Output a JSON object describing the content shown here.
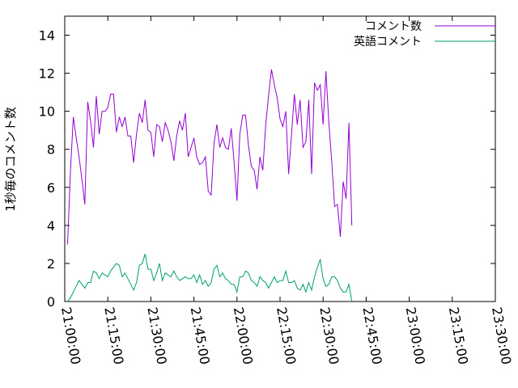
{
  "chart_data": {
    "type": "line",
    "title": "",
    "xlabel": "",
    "ylabel": "1秒毎のコメント数",
    "xlim": [
      "21:00:00",
      "23:30:00"
    ],
    "ylim": [
      0,
      15
    ],
    "xticks": [
      "21:00:00",
      "21:15:00",
      "21:30:00",
      "21:45:00",
      "22:00:00",
      "22:15:00",
      "22:30:00",
      "22:45:00",
      "23:00:00",
      "23:15:00",
      "23:30:00"
    ],
    "yticks": [
      0,
      2,
      4,
      6,
      8,
      10,
      12,
      14
    ],
    "grid": false,
    "legend_position": "top-right",
    "series": [
      {
        "name": "コメント数",
        "color": "#9400d3",
        "points": [
          [
            "21:01:00",
            3.0
          ],
          [
            "21:02:00",
            6.9
          ],
          [
            "21:03:00",
            9.7
          ],
          [
            "21:04:00",
            8.6
          ],
          [
            "21:05:00",
            7.6
          ],
          [
            "21:06:00",
            6.4
          ],
          [
            "21:07:00",
            5.1
          ],
          [
            "21:08:00",
            10.5
          ],
          [
            "21:09:00",
            9.5
          ],
          [
            "21:10:00",
            8.1
          ],
          [
            "21:11:00",
            10.8
          ],
          [
            "21:12:00",
            8.8
          ],
          [
            "21:13:00",
            10.0
          ],
          [
            "21:14:00",
            10.0
          ],
          [
            "21:15:00",
            10.2
          ],
          [
            "21:16:00",
            10.9
          ],
          [
            "21:17:00",
            10.9
          ],
          [
            "21:18:00",
            8.9
          ],
          [
            "21:19:00",
            9.7
          ],
          [
            "21:20:00",
            9.2
          ],
          [
            "21:21:00",
            9.7
          ],
          [
            "21:22:00",
            8.7
          ],
          [
            "21:23:00",
            8.7
          ],
          [
            "21:24:00",
            7.3
          ],
          [
            "21:25:00",
            8.8
          ],
          [
            "21:26:00",
            9.9
          ],
          [
            "21:27:00",
            9.4
          ],
          [
            "21:28:00",
            10.6
          ],
          [
            "21:29:00",
            9.0
          ],
          [
            "21:30:00",
            8.9
          ],
          [
            "21:31:00",
            7.6
          ],
          [
            "21:32:00",
            9.3
          ],
          [
            "21:33:00",
            9.2
          ],
          [
            "21:34:00",
            8.4
          ],
          [
            "21:35:00",
            9.4
          ],
          [
            "21:36:00",
            9.0
          ],
          [
            "21:37:00",
            8.4
          ],
          [
            "21:38:00",
            7.4
          ],
          [
            "21:39:00",
            8.7
          ],
          [
            "21:40:00",
            9.5
          ],
          [
            "21:41:00",
            9.0
          ],
          [
            "21:42:00",
            9.9
          ],
          [
            "21:43:00",
            7.6
          ],
          [
            "21:44:00",
            8.1
          ],
          [
            "21:45:00",
            8.6
          ],
          [
            "21:46:00",
            7.6
          ],
          [
            "21:47:00",
            7.2
          ],
          [
            "21:48:00",
            7.3
          ],
          [
            "21:49:00",
            7.6
          ],
          [
            "21:50:00",
            5.8
          ],
          [
            "21:51:00",
            5.6
          ],
          [
            "21:52:00",
            8.3
          ],
          [
            "21:53:00",
            9.3
          ],
          [
            "21:54:00",
            8.1
          ],
          [
            "21:55:00",
            8.6
          ],
          [
            "21:56:00",
            8.1
          ],
          [
            "21:57:00",
            8.0
          ],
          [
            "21:58:00",
            9.1
          ],
          [
            "21:59:00",
            7.3
          ],
          [
            "22:00:00",
            5.3
          ],
          [
            "22:01:00",
            8.8
          ],
          [
            "22:02:00",
            9.8
          ],
          [
            "22:03:00",
            9.8
          ],
          [
            "22:04:00",
            8.2
          ],
          [
            "22:05:00",
            7.1
          ],
          [
            "22:06:00",
            6.9
          ],
          [
            "22:07:00",
            5.9
          ],
          [
            "22:08:00",
            7.6
          ],
          [
            "22:09:00",
            6.9
          ],
          [
            "22:10:00",
            9.3
          ],
          [
            "22:11:00",
            10.8
          ],
          [
            "22:12:00",
            12.2
          ],
          [
            "22:13:00",
            11.4
          ],
          [
            "22:14:00",
            10.7
          ],
          [
            "22:15:00",
            9.6
          ],
          [
            "22:16:00",
            9.2
          ],
          [
            "22:17:00",
            10.0
          ],
          [
            "22:18:00",
            6.7
          ],
          [
            "22:19:00",
            8.8
          ],
          [
            "22:20:00",
            10.9
          ],
          [
            "22:21:00",
            9.3
          ],
          [
            "22:22:00",
            10.6
          ],
          [
            "22:23:00",
            8.1
          ],
          [
            "22:24:00",
            8.4
          ],
          [
            "22:25:00",
            10.6
          ],
          [
            "22:26:00",
            6.7
          ],
          [
            "22:27:00",
            11.5
          ],
          [
            "22:28:00",
            11.1
          ],
          [
            "22:29:00",
            11.4
          ],
          [
            "22:30:00",
            9.3
          ],
          [
            "22:31:00",
            12.1
          ],
          [
            "22:32:00",
            9.4
          ],
          [
            "22:33:00",
            7.4
          ],
          [
            "22:34:00",
            5.0
          ],
          [
            "22:35:00",
            5.1
          ],
          [
            "22:36:00",
            3.4
          ],
          [
            "22:37:00",
            6.3
          ],
          [
            "22:38:00",
            5.4
          ],
          [
            "22:39:00",
            9.4
          ],
          [
            "22:40:00",
            4.0
          ]
        ]
      },
      {
        "name": "英語コメント",
        "color": "#009e73",
        "points": [
          [
            "21:01:00",
            0.0
          ],
          [
            "21:02:00",
            0.2
          ],
          [
            "21:03:00",
            0.5
          ],
          [
            "21:04:00",
            0.8
          ],
          [
            "21:05:00",
            1.1
          ],
          [
            "21:06:00",
            0.9
          ],
          [
            "21:07:00",
            0.7
          ],
          [
            "21:08:00",
            1.0
          ],
          [
            "21:09:00",
            1.0
          ],
          [
            "21:10:00",
            1.6
          ],
          [
            "21:11:00",
            1.5
          ],
          [
            "21:12:00",
            1.2
          ],
          [
            "21:13:00",
            1.5
          ],
          [
            "21:14:00",
            1.4
          ],
          [
            "21:15:00",
            1.3
          ],
          [
            "21:16:00",
            1.6
          ],
          [
            "21:17:00",
            1.8
          ],
          [
            "21:18:00",
            2.0
          ],
          [
            "21:19:00",
            1.9
          ],
          [
            "21:20:00",
            1.3
          ],
          [
            "21:21:00",
            1.5
          ],
          [
            "21:22:00",
            1.2
          ],
          [
            "21:23:00",
            0.9
          ],
          [
            "21:24:00",
            0.6
          ],
          [
            "21:25:00",
            1.0
          ],
          [
            "21:26:00",
            1.9
          ],
          [
            "21:27:00",
            2.0
          ],
          [
            "21:28:00",
            2.5
          ],
          [
            "21:29:00",
            1.7
          ],
          [
            "21:30:00",
            1.7
          ],
          [
            "21:31:00",
            1.1
          ],
          [
            "21:32:00",
            1.5
          ],
          [
            "21:33:00",
            2.0
          ],
          [
            "21:34:00",
            1.1
          ],
          [
            "21:35:00",
            1.5
          ],
          [
            "21:36:00",
            1.4
          ],
          [
            "21:37:00",
            1.3
          ],
          [
            "21:38:00",
            1.6
          ],
          [
            "21:39:00",
            1.3
          ],
          [
            "21:40:00",
            1.1
          ],
          [
            "21:41:00",
            1.2
          ],
          [
            "21:42:00",
            1.3
          ],
          [
            "21:43:00",
            1.2
          ],
          [
            "21:44:00",
            1.2
          ],
          [
            "21:45:00",
            1.4
          ],
          [
            "21:46:00",
            1.0
          ],
          [
            "21:47:00",
            1.4
          ],
          [
            "21:48:00",
            0.9
          ],
          [
            "21:49:00",
            1.1
          ],
          [
            "21:50:00",
            0.8
          ],
          [
            "21:51:00",
            1.0
          ],
          [
            "21:52:00",
            1.7
          ],
          [
            "21:53:00",
            1.9
          ],
          [
            "21:54:00",
            1.3
          ],
          [
            "21:55:00",
            1.5
          ],
          [
            "21:56:00",
            1.2
          ],
          [
            "21:57:00",
            1.1
          ],
          [
            "21:58:00",
            0.9
          ],
          [
            "21:59:00",
            0.9
          ],
          [
            "22:00:00",
            0.5
          ],
          [
            "22:01:00",
            1.3
          ],
          [
            "22:02:00",
            1.3
          ],
          [
            "22:03:00",
            1.6
          ],
          [
            "22:04:00",
            1.5
          ],
          [
            "22:05:00",
            1.1
          ],
          [
            "22:06:00",
            1.0
          ],
          [
            "22:07:00",
            0.8
          ],
          [
            "22:08:00",
            1.3
          ],
          [
            "22:09:00",
            1.1
          ],
          [
            "22:10:00",
            1.0
          ],
          [
            "22:11:00",
            0.7
          ],
          [
            "22:12:00",
            1.0
          ],
          [
            "22:13:00",
            1.3
          ],
          [
            "22:14:00",
            1.0
          ],
          [
            "22:15:00",
            1.1
          ],
          [
            "22:16:00",
            1.1
          ],
          [
            "22:17:00",
            1.6
          ],
          [
            "22:18:00",
            1.0
          ],
          [
            "22:19:00",
            1.0
          ],
          [
            "22:20:00",
            1.1
          ],
          [
            "22:21:00",
            0.7
          ],
          [
            "22:22:00",
            0.6
          ],
          [
            "22:23:00",
            0.9
          ],
          [
            "22:24:00",
            0.5
          ],
          [
            "22:25:00",
            1.0
          ],
          [
            "22:26:00",
            0.6
          ],
          [
            "22:27:00",
            1.3
          ],
          [
            "22:28:00",
            1.8
          ],
          [
            "22:29:00",
            2.2
          ],
          [
            "22:30:00",
            1.2
          ],
          [
            "22:31:00",
            0.8
          ],
          [
            "22:32:00",
            0.9
          ],
          [
            "22:33:00",
            1.3
          ],
          [
            "22:34:00",
            1.3
          ],
          [
            "22:35:00",
            1.1
          ],
          [
            "22:36:00",
            0.7
          ],
          [
            "22:37:00",
            0.5
          ],
          [
            "22:38:00",
            0.5
          ],
          [
            "22:39:00",
            0.9
          ],
          [
            "22:40:00",
            0.0
          ]
        ]
      }
    ]
  }
}
